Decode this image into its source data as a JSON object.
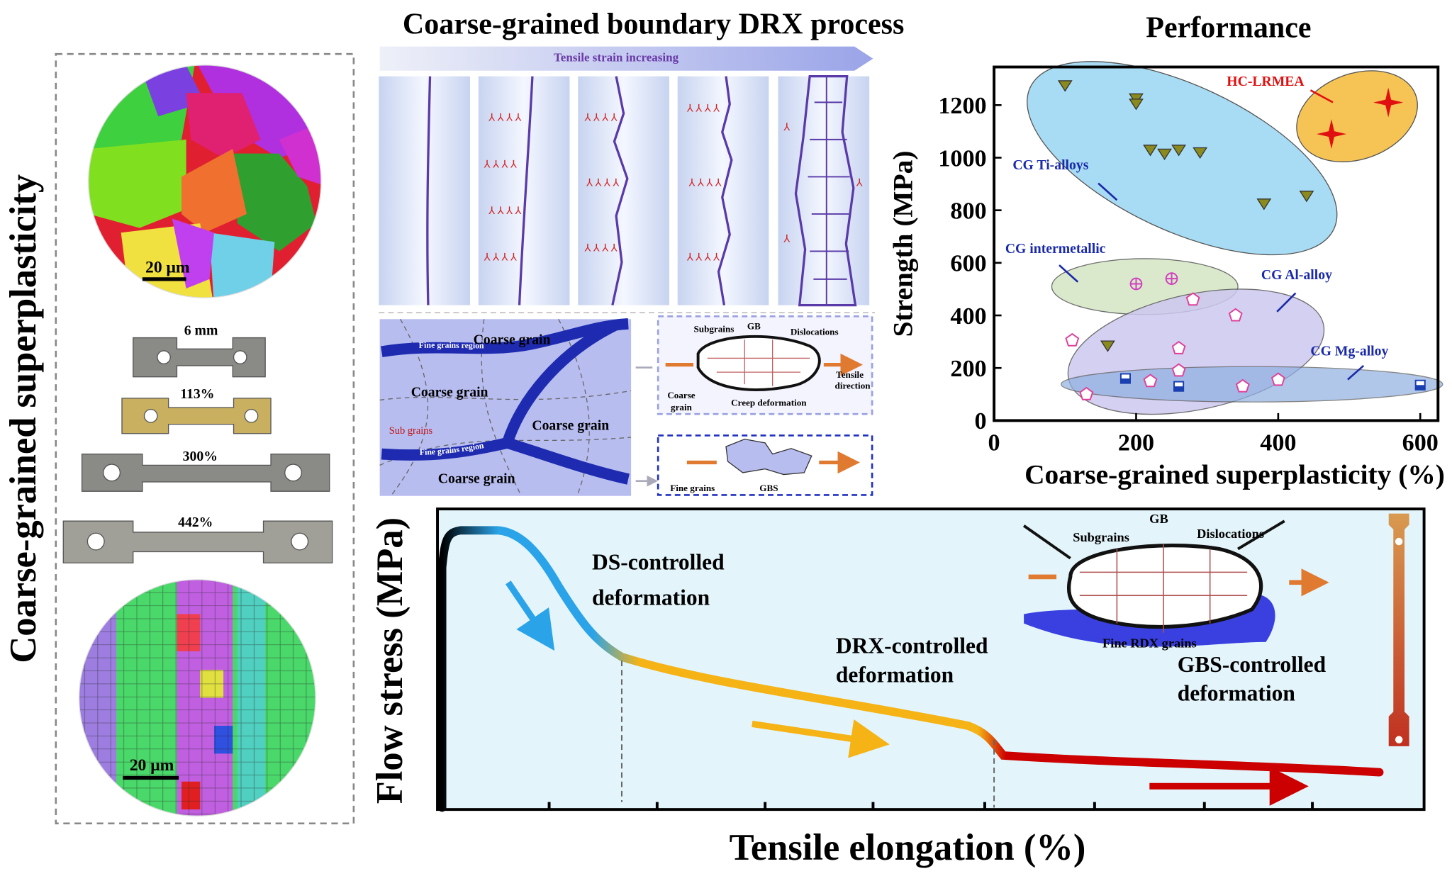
{
  "left_panel": {
    "title": "Coarse-grained superplasticity",
    "scale_bar_top": "20 μm",
    "scale_bar_bottom": "20 μm",
    "specimens": [
      "6 mm",
      "113%",
      "300%",
      "442%"
    ]
  },
  "drx_panel": {
    "title": "Coarse-grained boundary DRX process",
    "arrow_label": "Tensile strain increasing",
    "grain_labels": [
      "Coarse grain",
      "Coarse grain",
      "Coarse grain",
      "Coarse grain"
    ],
    "sub_grains": "Sub grains",
    "fine_region": "Fine grains region",
    "creep_box": {
      "subgrains": "Subgrains",
      "gb": "GB",
      "dislocations": "Dislocations",
      "tensile": [
        "Tensile",
        "direction"
      ],
      "coarse": [
        "Coarse",
        "grain"
      ],
      "creep": "Creep deformation"
    },
    "gbs_box": {
      "fine": "Fine grains",
      "gbs": "GBS"
    }
  },
  "chart_data": {
    "type": "scatter",
    "title": "Performance",
    "x_label": "Coarse-grained superplasticity (%)",
    "y_label": "Strength (MPa)",
    "xlim": [
      0,
      625
    ],
    "ylim": [
      0,
      1345
    ],
    "xticks": [
      0,
      200,
      400,
      600
    ],
    "yticks": [
      0,
      200,
      400,
      600,
      800,
      1000,
      1200
    ],
    "series": [
      {
        "name": "HC-LRMEA",
        "color": "#e01010",
        "marker": "star",
        "x": [
          555,
          475
        ],
        "values": [
          1210,
          1090
        ]
      },
      {
        "name": "CG Ti-alloys",
        "color": "#8a8a1e",
        "marker": "triangle-down",
        "x": [
          100,
          200,
          200,
          220,
          240,
          260,
          290,
          380,
          440,
          160
        ],
        "values": [
          1275,
          1225,
          1205,
          1030,
          1015,
          1030,
          1020,
          825,
          855,
          285
        ]
      },
      {
        "name": "CG intermetallic",
        "color": "#d040c0",
        "marker": "circle-plus",
        "x": [
          200,
          250
        ],
        "values": [
          520,
          540
        ]
      },
      {
        "name": "CG Al-alloy",
        "color": "#e0409a",
        "marker": "pentagon",
        "x": [
          280,
          340,
          260,
          130,
          220,
          260,
          350,
          400,
          110
        ],
        "values": [
          460,
          400,
          275,
          100,
          150,
          190,
          130,
          155,
          305
        ]
      },
      {
        "name": "CG Mg-alloy",
        "color": "#1a3fb0",
        "marker": "square-half",
        "x": [
          185,
          260,
          600
        ],
        "values": [
          160,
          130,
          135
        ]
      }
    ]
  },
  "flow_chart": {
    "x_label": "Tensile elongation (%)",
    "y_label": "Flow stress (MPa)",
    "ds_label": [
      "DS-controlled",
      "deformation"
    ],
    "drx_label": [
      "DRX-controlled",
      "deformation"
    ],
    "gbs_label": [
      "GBS-controlled",
      "deformation"
    ],
    "inset": {
      "subgrains": "Subgrains",
      "gb": "GB",
      "dislocations": "Dislocations",
      "fine": "Fine RDX grains"
    }
  }
}
